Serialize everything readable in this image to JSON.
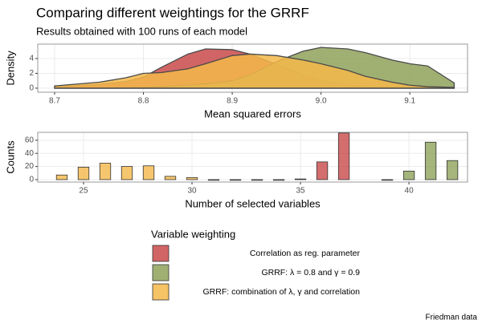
{
  "chart_data": [
    {
      "type": "area",
      "title": "Comparing different weightings for the GRRF",
      "subtitle": "Results obtained with 100 runs of each model",
      "x_label": "Mean squared errors",
      "y_label": "Density",
      "x": [
        8.7,
        8.75,
        8.78,
        8.8,
        8.82,
        8.85,
        8.87,
        8.9,
        8.92,
        8.95,
        8.98,
        9.0,
        9.03,
        9.05,
        9.08,
        9.1,
        9.12,
        9.15
      ],
      "series": [
        {
          "name": "Correlation as reg. parameter",
          "color": "#c94a4a",
          "values": [
            0.2,
            0.5,
            0.9,
            1.5,
            2.8,
            4.6,
            5.3,
            5.2,
            4.6,
            3.2,
            1.8,
            1.0,
            0.4,
            0.2,
            0.1,
            0.05,
            0.02,
            0.0
          ]
        },
        {
          "name": "GRRF: λ = 0.8 and γ = 0.9",
          "color": "#8fa25a",
          "values": [
            0,
            0.02,
            0.05,
            0.1,
            0.2,
            0.4,
            0.6,
            1.0,
            1.8,
            3.6,
            5.0,
            5.5,
            5.3,
            4.8,
            3.8,
            3.3,
            3.0,
            0.7
          ]
        },
        {
          "name": "GRRF: combination of λ, γ and correlation",
          "color": "#f4b84a",
          "values": [
            0.3,
            0.8,
            1.4,
            2.0,
            2.1,
            2.6,
            3.3,
            4.4,
            4.6,
            4.4,
            3.8,
            3.3,
            2.4,
            1.6,
            0.8,
            0.4,
            0.2,
            0.1
          ]
        }
      ],
      "xlim": [
        8.681,
        9.165
      ],
      "xticks": [
        8.7,
        8.8,
        8.9,
        {
          "value": 9.0,
          "label": "9.0"
        },
        9.1
      ],
      "ylim": [
        -0.55,
        5.95
      ],
      "yticks": [
        0,
        2,
        4
      ],
      "grid": true
    },
    {
      "type": "bar",
      "x_label": "Number of selected variables",
      "y_label": "Counts",
      "x": [
        24,
        25,
        26,
        27,
        28,
        29,
        30,
        31,
        32,
        33,
        34,
        35,
        36,
        37,
        38,
        39,
        40,
        41,
        42
      ],
      "series": [
        {
          "color": "#c94a4a",
          "values": [
            null,
            null,
            null,
            null,
            null,
            null,
            null,
            null,
            null,
            null,
            null,
            null,
            27,
            71,
            null,
            null,
            null,
            null,
            null
          ]
        },
        {
          "color": "#8fa25a",
          "values": [
            null,
            null,
            null,
            null,
            null,
            null,
            null,
            null,
            null,
            null,
            null,
            null,
            null,
            null,
            null,
            0,
            13,
            57,
            29
          ]
        },
        {
          "color": "#f4b84a",
          "values": [
            7,
            19,
            25,
            20,
            21,
            5,
            3,
            0,
            0,
            0,
            0,
            1,
            null,
            null,
            null,
            null,
            null,
            null,
            null
          ]
        }
      ],
      "xlim": [
        22.89,
        42.7
      ],
      "xticks": [
        25,
        30,
        35,
        40
      ],
      "ylim": [
        -3.7,
        72
      ],
      "yticks": [
        0,
        20,
        40,
        60
      ],
      "grid": true
    }
  ],
  "legend": {
    "title": "Variable weighting",
    "position": "bottom"
  },
  "caption": "Friedman data"
}
